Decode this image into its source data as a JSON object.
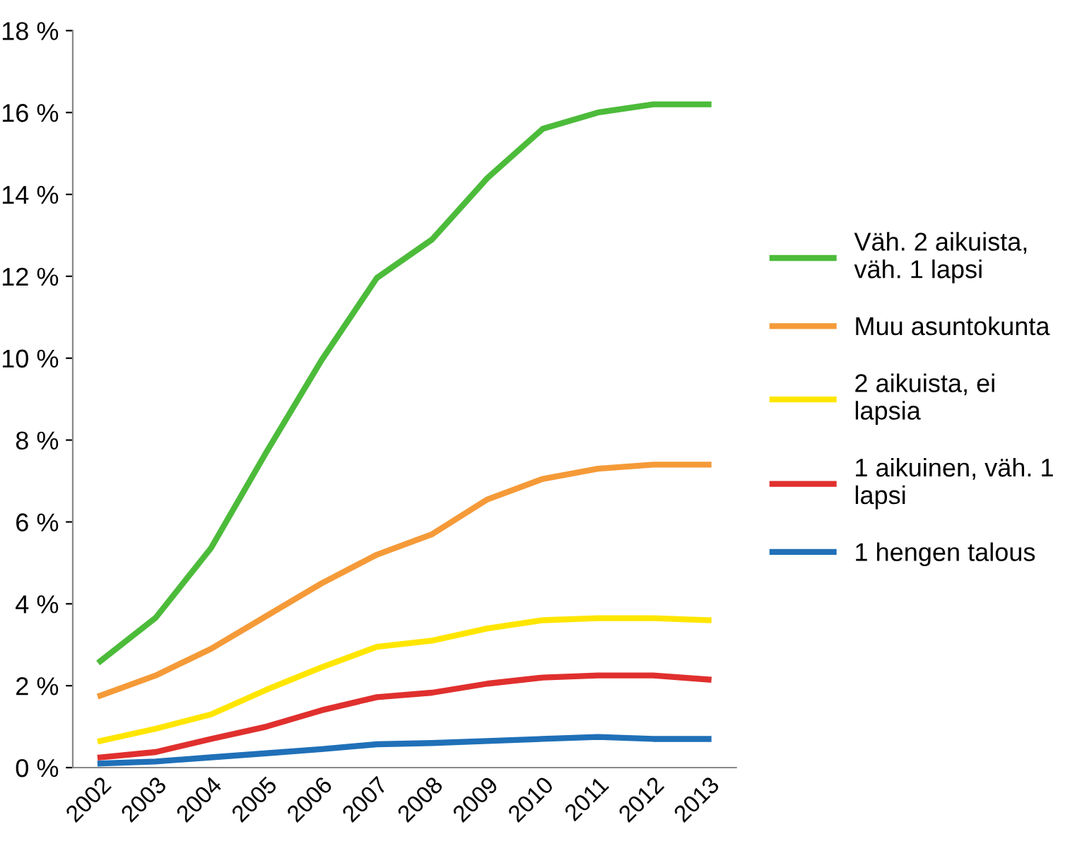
{
  "chart_data": {
    "type": "line",
    "categories": [
      "2002",
      "2003",
      "2004",
      "2005",
      "2006",
      "2007",
      "2008",
      "2009",
      "2010",
      "2011",
      "2012",
      "2013"
    ],
    "series": [
      {
        "name": "Väh. 2 aikuista,\nväh. 1 lapsi",
        "color": "#4cbb3a",
        "values": [
          2.6,
          3.66,
          5.36,
          7.7,
          9.95,
          11.96,
          12.9,
          14.4,
          15.6,
          16.0,
          16.2,
          16.2
        ]
      },
      {
        "name": "Muu asuntokunta",
        "color": "#f59a38",
        "values": [
          1.76,
          2.25,
          2.9,
          3.7,
          4.5,
          5.2,
          5.7,
          6.55,
          7.05,
          7.3,
          7.4,
          7.4
        ]
      },
      {
        "name": "2 aikuista, ei\nlapsia",
        "color": "#ffe600",
        "values": [
          0.65,
          0.95,
          1.3,
          1.9,
          2.45,
          2.95,
          3.1,
          3.4,
          3.6,
          3.65,
          3.65,
          3.6
        ]
      },
      {
        "name": "1 aikuinen, väh. 1\nlapsi",
        "color": "#e0302e",
        "values": [
          0.25,
          0.38,
          0.7,
          1.0,
          1.4,
          1.72,
          1.83,
          2.05,
          2.2,
          2.25,
          2.25,
          2.15
        ]
      },
      {
        "name": "1 hengen talous",
        "color": "#2070b8",
        "values": [
          0.1,
          0.15,
          0.25,
          0.35,
          0.45,
          0.57,
          0.6,
          0.65,
          0.7,
          0.75,
          0.7,
          0.7
        ]
      }
    ],
    "ylim": [
      0,
      18
    ],
    "yticks": [
      {
        "value": 0,
        "label": "0 %"
      },
      {
        "value": 2,
        "label": "2 %"
      },
      {
        "value": 4,
        "label": "4 %"
      },
      {
        "value": 6,
        "label": "6 %"
      },
      {
        "value": 8,
        "label": "8 %"
      },
      {
        "value": 10,
        "label": "10 %"
      },
      {
        "value": 12,
        "label": "12 %"
      },
      {
        "value": 14,
        "label": "14 %"
      },
      {
        "value": 16,
        "label": "16 %"
      },
      {
        "value": 18,
        "label": "18 %"
      }
    ],
    "grid": false,
    "legend": "right",
    "marker": "none",
    "line_style": "solid"
  }
}
